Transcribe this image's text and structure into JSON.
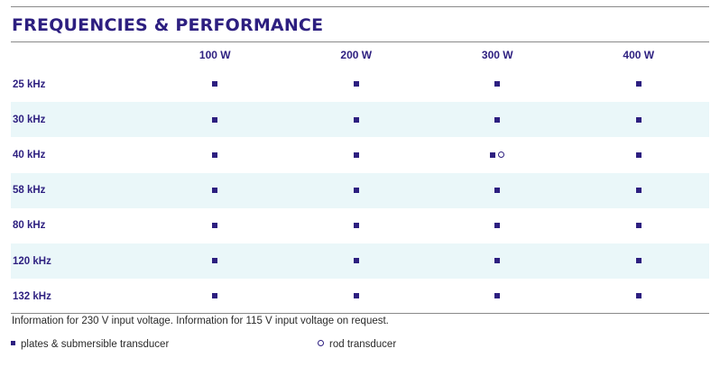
{
  "title": "FREQUENCIES & PERFORMANCE",
  "table": {
    "columns": [
      "100 W",
      "200 W",
      "300 W",
      "400 W"
    ],
    "rows": [
      {
        "label": "25 kHz",
        "cells": [
          [
            "plate"
          ],
          [
            "plate"
          ],
          [
            "plate"
          ],
          [
            "plate"
          ]
        ]
      },
      {
        "label": "30 kHz",
        "cells": [
          [
            "plate"
          ],
          [
            "plate"
          ],
          [
            "plate"
          ],
          [
            "plate"
          ]
        ]
      },
      {
        "label": "40 kHz",
        "cells": [
          [
            "plate"
          ],
          [
            "plate"
          ],
          [
            "plate",
            "rod"
          ],
          [
            "plate"
          ]
        ]
      },
      {
        "label": "58 kHz",
        "cells": [
          [
            "plate"
          ],
          [
            "plate"
          ],
          [
            "plate"
          ],
          [
            "plate"
          ]
        ]
      },
      {
        "label": "80 kHz",
        "cells": [
          [
            "plate"
          ],
          [
            "plate"
          ],
          [
            "plate"
          ],
          [
            "plate"
          ]
        ]
      },
      {
        "label": "120 kHz",
        "cells": [
          [
            "plate"
          ],
          [
            "plate"
          ],
          [
            "plate"
          ],
          [
            "plate"
          ]
        ]
      },
      {
        "label": "132 kHz",
        "cells": [
          [
            "plate"
          ],
          [
            "plate"
          ],
          [
            "plate"
          ],
          [
            "plate"
          ]
        ]
      }
    ]
  },
  "note": "Information for 230 V input voltage. Information for 115 V input voltage on request.",
  "legend": {
    "plate_label": "plates & submersible transducer",
    "rod_label": "rod transducer"
  },
  "colors": {
    "heading": "#2d1f80",
    "row_shade": "#eaf7f9",
    "text": "#2a2a2a"
  }
}
